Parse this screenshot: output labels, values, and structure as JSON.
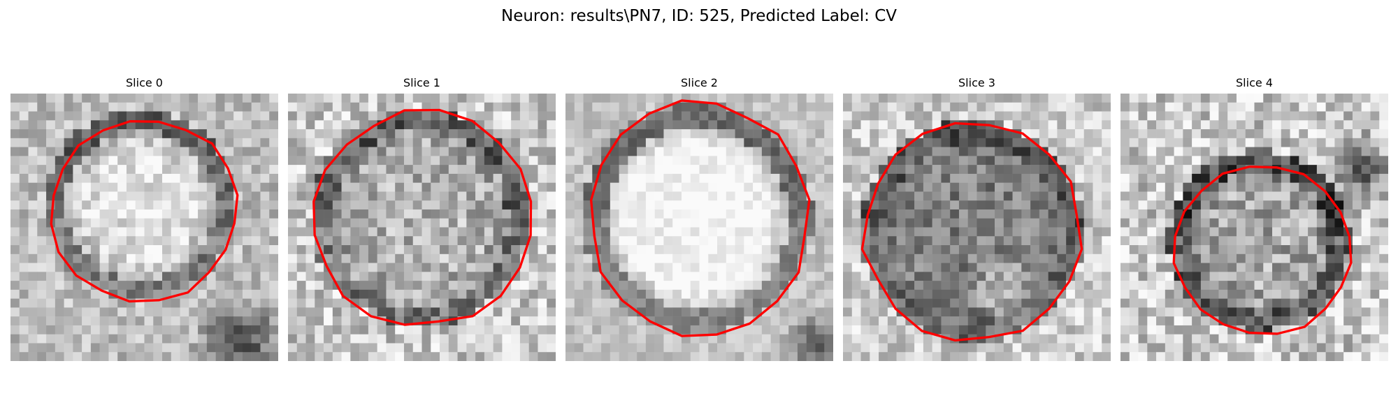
{
  "figure": {
    "title": "Neuron: results\\PN7, ID: 525, Predicted Label: CV"
  },
  "panels": [
    {
      "title": "Slice 0",
      "image": "grayscale-microscopy-patch",
      "overlay": "red-contour"
    },
    {
      "title": "Slice 1",
      "image": "grayscale-microscopy-patch",
      "overlay": "red-contour"
    },
    {
      "title": "Slice 2",
      "image": "grayscale-microscopy-patch",
      "overlay": "red-contour"
    },
    {
      "title": "Slice 3",
      "image": "grayscale-microscopy-patch",
      "overlay": "red-contour"
    },
    {
      "title": "Slice 4",
      "image": "grayscale-microscopy-patch",
      "overlay": "red-contour"
    }
  ],
  "colors": {
    "contour": "#ff0000",
    "background": "#ffffff"
  }
}
